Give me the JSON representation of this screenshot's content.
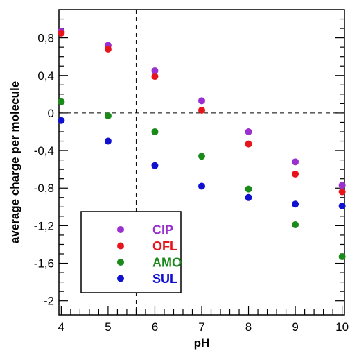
{
  "chart_data": {
    "type": "scatter",
    "xlabel": "pH",
    "ylabel": "average charge per molecule",
    "xlim": [
      3.95,
      10.05
    ],
    "ylim": [
      -2.15,
      1.1
    ],
    "x_ticks": [
      {
        "value": 4,
        "label": "4"
      },
      {
        "value": 5,
        "label": "5"
      },
      {
        "value": 6,
        "label": "6"
      },
      {
        "value": 7,
        "label": "7"
      },
      {
        "value": 8,
        "label": "8"
      },
      {
        "value": 9,
        "label": "9"
      },
      {
        "value": 10,
        "label": "10"
      }
    ],
    "y_ticks": [
      {
        "value": 0.8,
        "label": "0,8"
      },
      {
        "value": 0.4,
        "label": "0,4"
      },
      {
        "value": 0,
        "label": "0"
      },
      {
        "value": -0.4,
        "label": "-0,4"
      },
      {
        "value": -0.8,
        "label": "-0,8"
      },
      {
        "value": -1.2,
        "label": "-1,2"
      },
      {
        "value": -1.6,
        "label": "-1,6"
      },
      {
        "value": -2.0,
        "label": "-2"
      }
    ],
    "reference_lines": {
      "horizontal_y": 0,
      "vertical_x": 5.6
    },
    "legend_position": "bottom-left",
    "x": [
      4,
      5,
      6,
      7,
      8,
      9,
      10
    ],
    "series": [
      {
        "name": "CIP",
        "color": "#9b30d0",
        "values": [
          0.87,
          0.72,
          0.45,
          0.13,
          -0.2,
          -0.52,
          -0.77
        ]
      },
      {
        "name": "OFL",
        "color": "#e8141b",
        "values": [
          0.85,
          0.68,
          0.39,
          0.03,
          -0.33,
          -0.65,
          -0.84
        ]
      },
      {
        "name": "AMO",
        "color": "#1a8a1a",
        "values": [
          0.12,
          -0.03,
          -0.2,
          -0.46,
          -0.81,
          -1.19,
          -1.53
        ]
      },
      {
        "name": "SUL",
        "color": "#1010d0",
        "values": [
          -0.08,
          -0.3,
          -0.56,
          -0.78,
          -0.9,
          -0.97,
          -0.99
        ]
      }
    ]
  }
}
